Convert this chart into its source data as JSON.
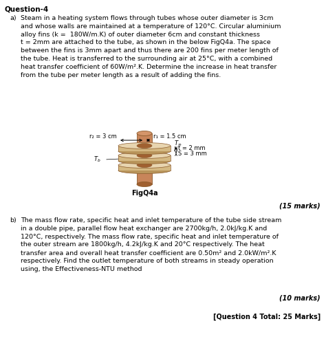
{
  "title": "Question-4",
  "part_a_label": "a)",
  "part_a_text": "Steam in a heating system flows through tubes whose outer diameter is 3cm\nand whose walls are maintained at a temperature of 120°C. Circular aluminium\nalloy fins (k =  180W/m.K) of outer diameter 6cm and constant thickness\nt = 2mm are attached to the tube, as shown in the below FigQ4a. The space\nbetween the fins is 3mm apart and thus there are 200 fins per meter length of\nthe tube. Heat is transferred to the surrounding air at 25°C, with a combined\nheat transfer coefficient of 60W/m².K. Determine the increase in heat transfer\nfrom the tube per meter length as a result of adding the fins.",
  "fig_label": "FigQ4a",
  "marks_a": "(15 marks)",
  "part_b_label": "b)",
  "part_b_text": "The mass flow rate, specific heat and inlet temperature of the tube side stream\nin a double pipe, parallel flow heat exchanger are 2700kg/h, 2.0kJ/kg.K and\n120°C, respectively. The mass flow rate, specific heat and inlet temperature of\nthe outer stream are 1800kg/h, 4.2kJ/kg.K and 20°C respectively. The heat\ntransfer area and overall heat transfer coefficient are 0.50m² and 2.0kW/m².K\nrespectively. Find the outlet temperature of both streams in steady operation\nusing, the Effectiveness-NTU method",
  "marks_b": "(10 marks)",
  "total": "[Question 4 Total: 25 Marks]",
  "r2_label": "r₂ = 3 cm",
  "r1_label": "r₁ = 1.5 cm",
  "Tb_label": "T₆",
  "t_label": "t = 2 mm",
  "S_label": "S = 3 mm",
  "fin_color_top": "#E8D5B0",
  "fin_color_side": "#D4B882",
  "fin_color_bottom": "#B8945A",
  "tube_color_side": "#C8855A",
  "tube_color_top": "#D4956A",
  "bg_color": "#ffffff"
}
